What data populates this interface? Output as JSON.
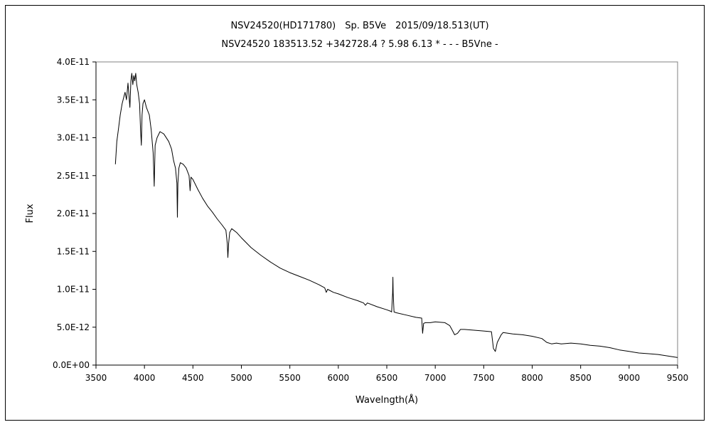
{
  "chart_data": {
    "type": "line",
    "title": "NSV24520(HD171780)　Sp. B5Ve　2015/09/18.513(UT)",
    "subtitle": "NSV24520 183513.52 +342728.4 ? 5.98 6.13 * - - - B5Vne -",
    "xlabel": "Wavelngth(Å)",
    "ylabel": "Flux",
    "xlim": [
      3500,
      9500
    ],
    "ylim": [
      0,
      4e-11
    ],
    "x_ticks": [
      3500,
      4000,
      4500,
      5000,
      5500,
      6000,
      6500,
      7000,
      7500,
      8000,
      8500,
      9000,
      9500
    ],
    "y_tick_labels": [
      "0.0E+00",
      "5.0E-12",
      "1.0E-11",
      "1.5E-11",
      "2.0E-11",
      "2.5E-11",
      "3.0E-11",
      "3.5E-11",
      "4.0E-11"
    ],
    "y_ticks": [
      0,
      5e-12,
      1e-11,
      1.5e-11,
      2e-11,
      2.5e-11,
      3e-11,
      3.5e-11,
      4e-11
    ],
    "grid": false,
    "line_color": "#000000",
    "series": [
      {
        "x": [
          3700,
          3715,
          3730,
          3750,
          3770,
          3790,
          3800,
          3815,
          3830,
          3850,
          3860,
          3870,
          3880,
          3890,
          3900,
          3910,
          3920,
          3935,
          3950,
          3960,
          3968,
          3975,
          3985,
          4000,
          4020,
          4050,
          4070,
          4090,
          4101,
          4110,
          4130,
          4160,
          4200,
          4250,
          4280,
          4300,
          4320,
          4335,
          4340,
          4345,
          4355,
          4370,
          4400,
          4430,
          4460,
          4471,
          4480,
          4500,
          4550,
          4600,
          4650,
          4700,
          4750,
          4800,
          4840,
          4855,
          4861,
          4868,
          4880,
          4900,
          4950,
          5000,
          5100,
          5200,
          5300,
          5400,
          5500,
          5600,
          5700,
          5800,
          5860,
          5876,
          5890,
          5950,
          6000,
          6100,
          6200,
          6260,
          6280,
          6300,
          6400,
          6500,
          6540,
          6550,
          6560,
          6563,
          6566,
          6575,
          6600,
          6700,
          6800,
          6860,
          6870,
          6880,
          6900,
          6950,
          7000,
          7100,
          7150,
          7180,
          7200,
          7230,
          7260,
          7300,
          7400,
          7500,
          7580,
          7600,
          7620,
          7640,
          7680,
          7700,
          7750,
          7800,
          7900,
          8000,
          8100,
          8150,
          8200,
          8250,
          8300,
          8400,
          8500,
          8600,
          8700,
          8800,
          8900,
          9000,
          9100,
          9200,
          9300,
          9400,
          9500
        ],
        "y": [
          2.65e-11,
          2.95e-11,
          3.1e-11,
          3.3e-11,
          3.45e-11,
          3.55e-11,
          3.6e-11,
          3.5e-11,
          3.72e-11,
          3.4e-11,
          3.75e-11,
          3.85e-11,
          3.7e-11,
          3.82e-11,
          3.75e-11,
          3.85e-11,
          3.7e-11,
          3.6e-11,
          3.45e-11,
          3.1e-11,
          2.9e-11,
          3.3e-11,
          3.45e-11,
          3.5e-11,
          3.4e-11,
          3.3e-11,
          3.1e-11,
          2.8e-11,
          2.36e-11,
          2.9e-11,
          3e-11,
          3.08e-11,
          3.05e-11,
          2.95e-11,
          2.85e-11,
          2.7e-11,
          2.6e-11,
          2.4e-11,
          1.95e-11,
          2.4e-11,
          2.6e-11,
          2.67e-11,
          2.65e-11,
          2.6e-11,
          2.5e-11,
          2.3e-11,
          2.48e-11,
          2.45e-11,
          2.32e-11,
          2.2e-11,
          2.1e-11,
          2.02e-11,
          1.93e-11,
          1.85e-11,
          1.78e-11,
          1.6e-11,
          1.42e-11,
          1.6e-11,
          1.75e-11,
          1.8e-11,
          1.75e-11,
          1.68e-11,
          1.55e-11,
          1.45e-11,
          1.36e-11,
          1.28e-11,
          1.22e-11,
          1.17e-11,
          1.12e-11,
          1.06e-11,
          1.02e-11,
          9.6e-12,
          1e-11,
          9.6e-12,
          9.4e-12,
          8.9e-12,
          8.5e-12,
          8.2e-12,
          7.9e-12,
          8.2e-12,
          7.7e-12,
          7.3e-12,
          7.1e-12,
          7e-12,
          9.5e-12,
          1.16e-11,
          9.5e-12,
          7e-12,
          6.9e-12,
          6.6e-12,
          6.3e-12,
          6.2e-12,
          4.2e-12,
          5.5e-12,
          5.6e-12,
          5.6e-12,
          5.7e-12,
          5.6e-12,
          5.2e-12,
          4.5e-12,
          4e-12,
          4.2e-12,
          4.7e-12,
          4.7e-12,
          4.6e-12,
          4.5e-12,
          4.4e-12,
          2.2e-12,
          1.8e-12,
          3e-12,
          4e-12,
          4.3e-12,
          4.2e-12,
          4.1e-12,
          4e-12,
          3.8e-12,
          3.5e-12,
          3e-12,
          2.8e-12,
          2.9e-12,
          2.8e-12,
          2.9e-12,
          2.8e-12,
          2.6e-12,
          2.5e-12,
          2.3e-12,
          2e-12,
          1.8e-12,
          1.6e-12,
          1.5e-12,
          1.4e-12,
          1.2e-12,
          1e-12
        ]
      }
    ]
  }
}
